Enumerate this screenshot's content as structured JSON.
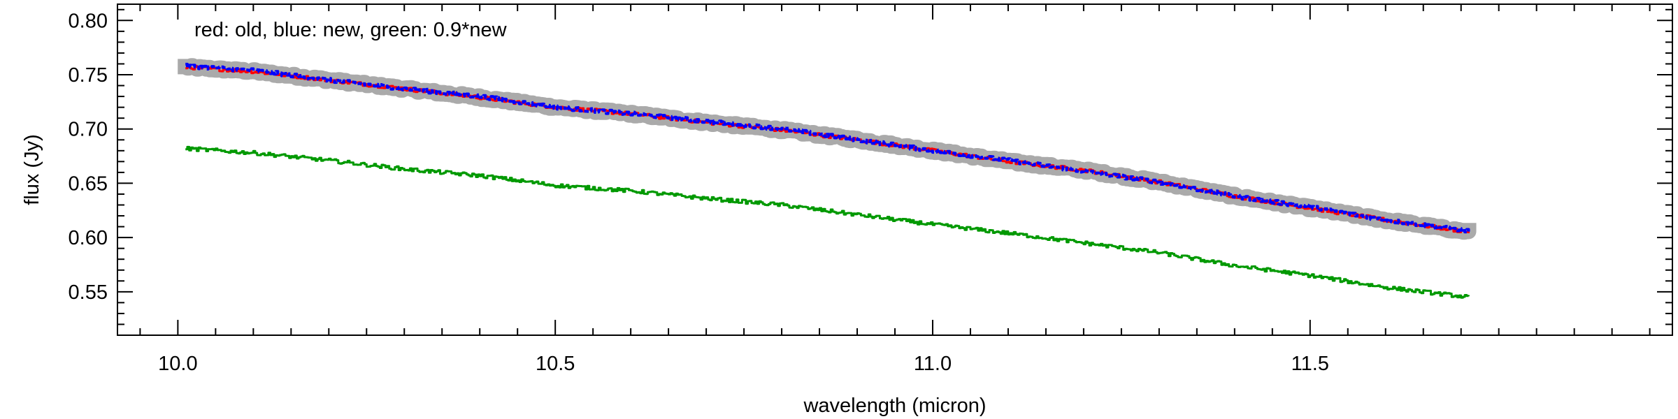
{
  "chart_data": {
    "type": "line",
    "title": "",
    "xlabel": "wavelength (micron)",
    "ylabel": "flux (Jy)",
    "xlim": [
      9.92,
      11.98
    ],
    "ylim": [
      0.51,
      0.815
    ],
    "x_ticks": [
      "10.0",
      "10.5",
      "11.0",
      "11.5"
    ],
    "y_ticks": [
      "0.55",
      "0.60",
      "0.65",
      "0.70",
      "0.75",
      "0.80"
    ],
    "grid": false,
    "legend": "none",
    "annotation": "red: old, blue: new, green: 0.9*new",
    "x_range": [
      10.01,
      11.71
    ],
    "series": [
      {
        "color": "#aaaaaa",
        "style": "band",
        "x": [
          10.01,
          10.1,
          10.2,
          10.3,
          10.4,
          10.5,
          10.6,
          10.7,
          10.8,
          10.9,
          11.0,
          11.1,
          11.2,
          11.3,
          11.4,
          11.5,
          11.6,
          11.71
        ],
        "values": [
          0.757,
          0.753,
          0.745,
          0.737,
          0.729,
          0.72,
          0.714,
          0.706,
          0.699,
          0.69,
          0.68,
          0.67,
          0.662,
          0.651,
          0.638,
          0.627,
          0.616,
          0.605
        ]
      },
      {
        "color": "#ff0000",
        "style": "line",
        "x": [
          10.01,
          10.1,
          10.2,
          10.3,
          10.4,
          10.5,
          10.6,
          10.7,
          10.8,
          10.9,
          11.0,
          11.1,
          11.2,
          11.3,
          11.4,
          11.5,
          11.6,
          11.71
        ],
        "values": [
          0.757,
          0.753,
          0.745,
          0.737,
          0.729,
          0.72,
          0.714,
          0.706,
          0.699,
          0.69,
          0.68,
          0.67,
          0.662,
          0.651,
          0.638,
          0.627,
          0.616,
          0.605
        ]
      },
      {
        "color": "#0000ff",
        "style": "dashed",
        "x": [
          10.01,
          10.1,
          10.2,
          10.3,
          10.4,
          10.5,
          10.6,
          10.7,
          10.8,
          10.9,
          11.0,
          11.1,
          11.2,
          11.3,
          11.4,
          11.5,
          11.6,
          11.71
        ],
        "values": [
          0.758,
          0.754,
          0.745,
          0.737,
          0.73,
          0.72,
          0.714,
          0.707,
          0.7,
          0.69,
          0.68,
          0.671,
          0.661,
          0.651,
          0.638,
          0.628,
          0.616,
          0.606
        ]
      },
      {
        "color": "#009900",
        "style": "line",
        "x": [
          10.01,
          10.1,
          10.2,
          10.3,
          10.4,
          10.5,
          10.6,
          10.7,
          10.8,
          10.9,
          11.0,
          11.1,
          11.2,
          11.3,
          11.4,
          11.5,
          11.6,
          11.71
        ],
        "values": [
          0.682,
          0.678,
          0.671,
          0.663,
          0.657,
          0.648,
          0.643,
          0.636,
          0.63,
          0.621,
          0.612,
          0.604,
          0.595,
          0.586,
          0.574,
          0.565,
          0.554,
          0.545
        ]
      }
    ]
  }
}
